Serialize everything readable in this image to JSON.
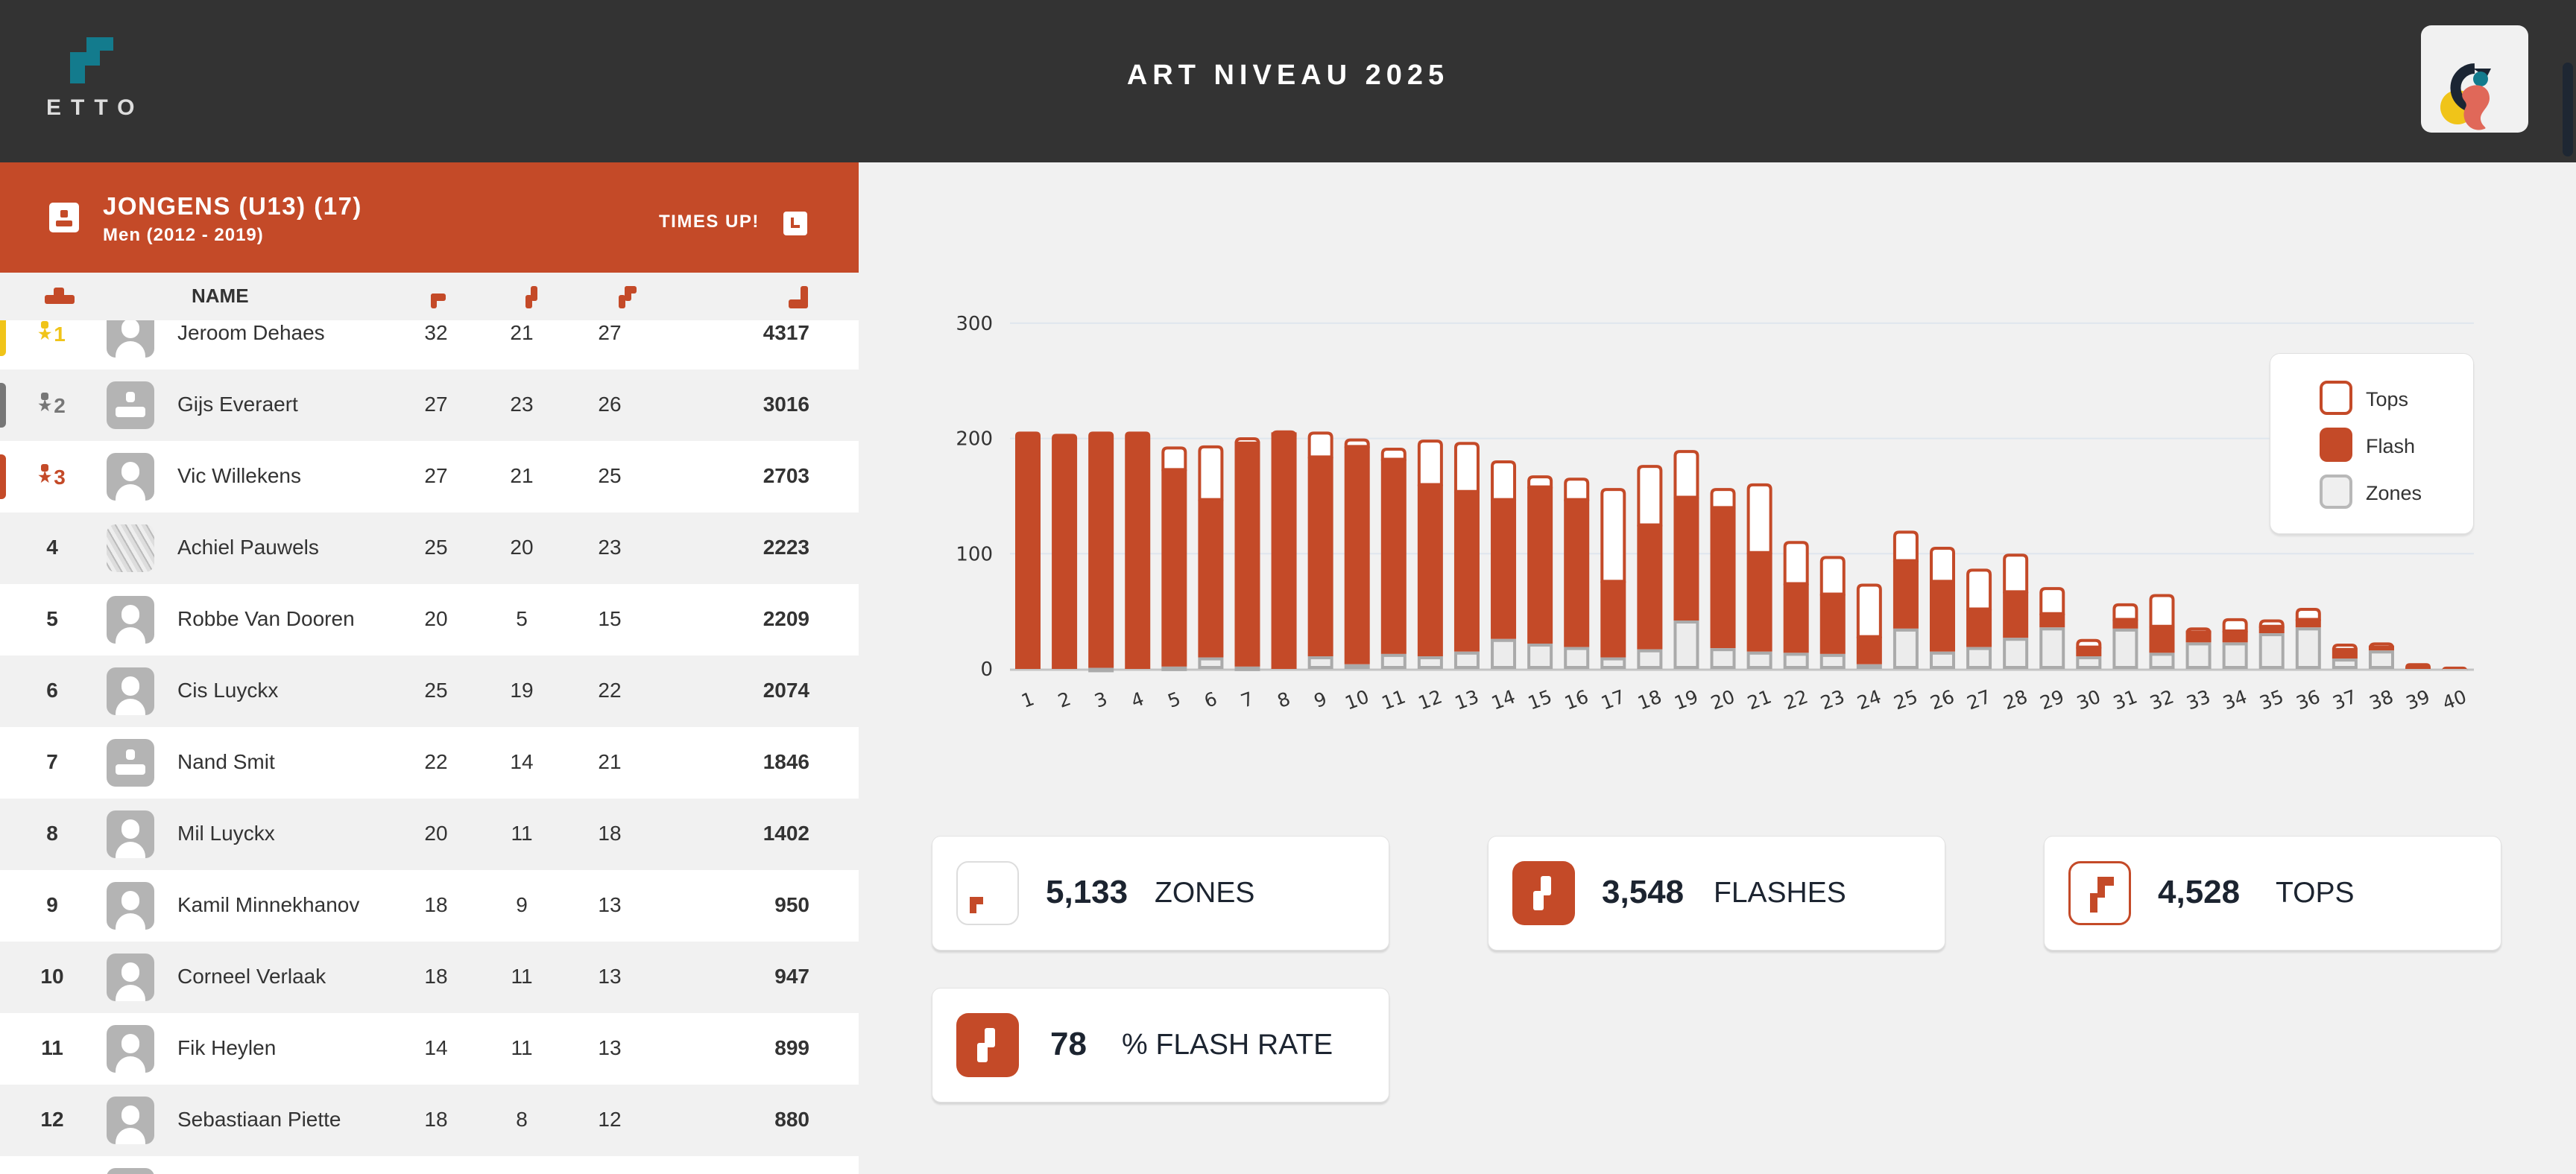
{
  "header": {
    "logo_text": "ETTO",
    "title": "ART NIVEAU 2025",
    "partner_logo": "partner-logo"
  },
  "category": {
    "title": "JONGENS (U13) (17)",
    "subtitle": "Men (2012 - 2019)",
    "status": "TIMES UP!"
  },
  "table": {
    "name_header": "NAME",
    "rows": [
      {
        "rank": "1",
        "name": "Jeroom Dehaes",
        "zones": "32",
        "flashes": "21",
        "tops": "27",
        "score": "4317"
      },
      {
        "rank": "2",
        "name": "Gijs Everaert",
        "zones": "27",
        "flashes": "23",
        "tops": "26",
        "score": "3016"
      },
      {
        "rank": "3",
        "name": "Vic Willekens",
        "zones": "27",
        "flashes": "21",
        "tops": "25",
        "score": "2703"
      },
      {
        "rank": "4",
        "name": "Achiel Pauwels",
        "zones": "25",
        "flashes": "20",
        "tops": "23",
        "score": "2223"
      },
      {
        "rank": "5",
        "name": "Robbe Van Dooren",
        "zones": "20",
        "flashes": "5",
        "tops": "15",
        "score": "2209"
      },
      {
        "rank": "6",
        "name": "Cis Luyckx",
        "zones": "25",
        "flashes": "19",
        "tops": "22",
        "score": "2074"
      },
      {
        "rank": "7",
        "name": "Nand Smit",
        "zones": "22",
        "flashes": "14",
        "tops": "21",
        "score": "1846"
      },
      {
        "rank": "8",
        "name": "Mil Luyckx",
        "zones": "20",
        "flashes": "11",
        "tops": "18",
        "score": "1402"
      },
      {
        "rank": "9",
        "name": "Kamil Minnekhanov",
        "zones": "18",
        "flashes": "9",
        "tops": "13",
        "score": "950"
      },
      {
        "rank": "10",
        "name": "Corneel Verlaak",
        "zones": "18",
        "flashes": "11",
        "tops": "13",
        "score": "947"
      },
      {
        "rank": "11",
        "name": "Fik Heylen",
        "zones": "14",
        "flashes": "11",
        "tops": "13",
        "score": "899"
      },
      {
        "rank": "12",
        "name": "Sebastiaan Piette",
        "zones": "18",
        "flashes": "8",
        "tops": "12",
        "score": "880"
      }
    ]
  },
  "medal_colors": {
    "1": "#f0c419",
    "2": "#777777",
    "3": "#c44a28"
  },
  "chart_data": {
    "type": "bar",
    "stacked": true,
    "categories": [
      "1",
      "2",
      "3",
      "4",
      "5",
      "6",
      "7",
      "8",
      "9",
      "10",
      "11",
      "12",
      "13",
      "14",
      "15",
      "16",
      "17",
      "18",
      "19",
      "20",
      "21",
      "22",
      "23",
      "24",
      "25",
      "26",
      "27",
      "28",
      "29",
      "30",
      "31",
      "32",
      "33",
      "34",
      "35",
      "36",
      "37",
      "38",
      "39",
      "40"
    ],
    "series": [
      {
        "name": "Zones",
        "color": "#ececec",
        "values": [
          0,
          0,
          1,
          0,
          2,
          10,
          2,
          0,
          11,
          4,
          13,
          11,
          15,
          26,
          22,
          19,
          10,
          17,
          42,
          18,
          15,
          14,
          13,
          4,
          35,
          15,
          19,
          27,
          36,
          11,
          35,
          14,
          23,
          23,
          31,
          36,
          9,
          16,
          0,
          0
        ]
      },
      {
        "name": "Flash",
        "color": "#c44a28",
        "values": [
          206,
          204,
          205,
          206,
          171,
          137,
          194,
          204,
          173,
          189,
          169,
          149,
          139,
          121,
          136,
          128,
          66,
          108,
          107,
          122,
          86,
          60,
          52,
          24,
          59,
          61,
          33,
          40,
          12,
          8,
          8,
          23,
          9,
          10,
          6,
          7,
          8,
          3,
          5,
          2
        ]
      },
      {
        "name": "Tops",
        "color": "#ffffff",
        "values": [
          0,
          0,
          0,
          0,
          20,
          47,
          5,
          3,
          22,
          7,
          10,
          39,
          43,
          34,
          10,
          19,
          81,
          52,
          41,
          17,
          60,
          37,
          33,
          46,
          26,
          30,
          35,
          33,
          23,
          7,
          14,
          28,
          4,
          11,
          6,
          10,
          5,
          4,
          0,
          0
        ]
      }
    ],
    "yticks": [
      "0",
      "100",
      "200",
      "300"
    ],
    "ylim": [
      0,
      300
    ],
    "grid": true,
    "legend": "top-right"
  },
  "legend": {
    "tops": "Tops",
    "flash": "Flash",
    "zones": "Zones"
  },
  "stats": {
    "zones": {
      "value": "5,133",
      "label": "ZONES"
    },
    "flashes": {
      "value": "3,548",
      "label": "FLASHES"
    },
    "tops": {
      "value": "4,528",
      "label": "TOPS"
    },
    "flash_rate": {
      "value": "78",
      "label": "% FLASH RATE"
    }
  }
}
